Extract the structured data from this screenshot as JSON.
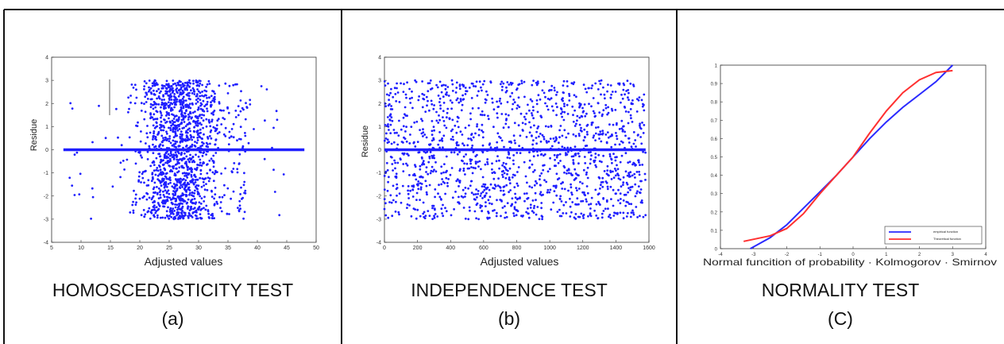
{
  "panels": [
    {
      "caption": "HOMOSCEDASTICITY TEST",
      "letter": "(a)",
      "chart_data": {
        "type": "scatter",
        "xlabel": "Adjusted values",
        "ylabel": "Residue",
        "xlim": [
          5,
          50
        ],
        "ylim": [
          -4,
          4
        ],
        "xticks": [
          5,
          10,
          15,
          20,
          25,
          30,
          35,
          40,
          45,
          50
        ],
        "yticks": [
          -4,
          -3,
          -2,
          -1,
          0,
          1,
          2,
          3,
          4
        ],
        "marker_color": "#1f1fff",
        "reference_line": {
          "y": 0,
          "x_from": 7,
          "x_to": 48
        },
        "density_description": "points concentrated around x 22-31, spread over residue -3 to 3"
      }
    },
    {
      "caption": "INDEPENDENCE TEST",
      "letter": "(b)",
      "chart_data": {
        "type": "scatter",
        "xlabel": "Adjusted values",
        "ylabel": "Residue",
        "xlim": [
          0,
          1600
        ],
        "ylim": [
          -4,
          4
        ],
        "xticks": [
          0,
          200,
          400,
          600,
          800,
          1000,
          1200,
          1400,
          1600
        ],
        "yticks": [
          -4,
          -3,
          -2,
          -1,
          0,
          1,
          2,
          3,
          4
        ],
        "marker_color": "#1f1fff",
        "reference_line": {
          "y": 0,
          "x_from": 0,
          "x_to": 1580
        }
      }
    },
    {
      "caption": "NORMALITY TEST",
      "letter": "(C)",
      "chart_data": {
        "type": "line",
        "xlabel": "Normal funcition of probability · Kolmogorov · Smirnov",
        "ylabel": "",
        "xlim": [
          -4,
          4
        ],
        "ylim": [
          0,
          1
        ],
        "xticks": [
          -4,
          -3,
          -2,
          -1,
          0,
          1,
          2,
          3,
          4
        ],
        "yticks": [
          0,
          0.1,
          0.2,
          0.3,
          0.4,
          0.5,
          0.6,
          0.7,
          0.8,
          0.9,
          1
        ],
        "series": [
          {
            "name": "empirical function",
            "color": "#2a2aff",
            "x": [
              -3.1,
              -2.5,
              -2.0,
              -1.5,
              -1.0,
              -0.5,
              0.0,
              0.5,
              1.0,
              1.5,
              2.0,
              2.5,
              3.0
            ],
            "y": [
              0.0,
              0.06,
              0.13,
              0.22,
              0.31,
              0.4,
              0.5,
              0.6,
              0.69,
              0.77,
              0.84,
              0.91,
              1.0
            ]
          },
          {
            "name": "Theoretical function",
            "color": "#ff3030",
            "x": [
              -3.3,
              -2.5,
              -2.0,
              -1.5,
              -1.0,
              -0.5,
              0.0,
              0.5,
              1.0,
              1.5,
              2.0,
              2.5,
              3.0
            ],
            "y": [
              0.04,
              0.07,
              0.11,
              0.19,
              0.3,
              0.4,
              0.5,
              0.63,
              0.75,
              0.85,
              0.92,
              0.96,
              0.97
            ]
          }
        ],
        "legend_position": "bottom-right"
      }
    }
  ]
}
